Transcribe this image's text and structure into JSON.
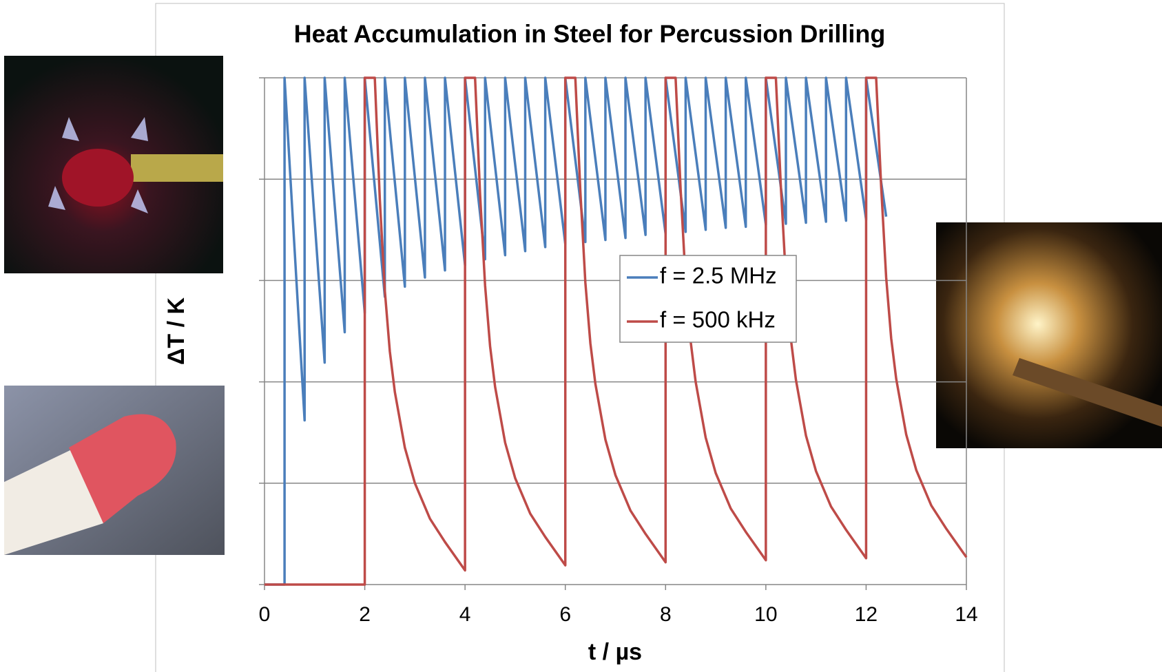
{
  "chart_data": {
    "type": "line",
    "title": "Heat Accumulation in Steel for Percussion Drilling",
    "xlabel": "t / µs",
    "ylabel": "ΔT / K",
    "xlim": [
      0,
      14
    ],
    "xticks": [
      0,
      2,
      4,
      6,
      8,
      10,
      12,
      14
    ],
    "ylim": [
      0,
      5
    ],
    "yticks": [
      0,
      1,
      2,
      3,
      4,
      5
    ],
    "grid": true,
    "series": [
      {
        "name": "f = 2.5 MHz",
        "color": "#4a7ebb",
        "x": [
          0,
          0.4,
          0.4,
          0.8,
          0.8,
          1.2,
          1.2,
          1.6,
          1.6,
          2,
          2,
          2.4,
          2.4,
          2.8,
          2.8,
          3.2,
          3.2,
          3.6,
          3.6,
          4,
          4,
          4.4,
          4.4,
          4.8,
          4.8,
          5.2,
          5.2,
          5.6,
          5.6,
          6,
          6,
          6.4,
          6.4,
          6.8,
          6.8,
          7.2,
          7.2,
          7.6,
          7.6,
          8,
          8,
          8.4,
          8.4,
          8.8,
          8.8,
          9.2,
          9.2,
          9.6,
          9.6,
          10,
          10,
          10.4,
          10.4,
          10.8,
          10.8,
          11.2,
          11.2,
          11.6,
          11.6,
          12,
          12,
          12.4
        ],
        "values": [
          0,
          0,
          5,
          1.62,
          5,
          2.19,
          5,
          2.49,
          5,
          2.68,
          5,
          2.84,
          5,
          2.94,
          5,
          3.03,
          5,
          3.1,
          5,
          3.15,
          5,
          3.21,
          5,
          3.25,
          5,
          3.29,
          5,
          3.33,
          5,
          3.36,
          5,
          3.38,
          5,
          3.4,
          5,
          3.42,
          5,
          3.45,
          5,
          3.46,
          5,
          3.48,
          5,
          3.5,
          5,
          3.52,
          5,
          3.53,
          5,
          3.55,
          5,
          3.56,
          5,
          3.57,
          5,
          3.58,
          5,
          3.59,
          5,
          3.6,
          5,
          3.63
        ]
      },
      {
        "name": "f = 500 kHz",
        "color": "#be4b48",
        "x": [
          0,
          2,
          2,
          2.2,
          2.3,
          2.4,
          2.5,
          2.6,
          2.8,
          3,
          3.3,
          3.6,
          4,
          4,
          4.2,
          4.3,
          4.4,
          4.5,
          4.6,
          4.8,
          5,
          5.3,
          5.6,
          6,
          6,
          6.2,
          6.3,
          6.4,
          6.5,
          6.6,
          6.8,
          7,
          7.3,
          7.6,
          8,
          8,
          8.2,
          8.3,
          8.4,
          8.5,
          8.6,
          8.8,
          9,
          9.3,
          9.6,
          10,
          10,
          10.2,
          10.3,
          10.4,
          10.5,
          10.6,
          10.8,
          11,
          11.3,
          11.6,
          12,
          12,
          12.2,
          12.3,
          12.4,
          12.5,
          12.6,
          12.8,
          13,
          13.3,
          13.6,
          14
        ],
        "values": [
          0,
          0,
          5,
          5,
          3.8,
          2.9,
          2.3,
          1.9,
          1.35,
          1,
          0.65,
          0.42,
          0.14,
          5,
          5,
          3.85,
          2.95,
          2.35,
          1.95,
          1.4,
          1.05,
          0.7,
          0.47,
          0.19,
          5,
          5,
          3.88,
          2.98,
          2.38,
          1.98,
          1.43,
          1.08,
          0.73,
          0.5,
          0.22,
          5,
          5,
          3.9,
          3,
          2.4,
          2,
          1.45,
          1.1,
          0.75,
          0.52,
          0.24,
          5,
          5,
          3.92,
          3.02,
          2.42,
          2.02,
          1.47,
          1.12,
          0.77,
          0.54,
          0.26,
          5,
          5,
          3.93,
          3.03,
          2.43,
          2.03,
          1.48,
          1.13,
          0.78,
          0.55,
          0.27
        ]
      }
    ]
  }
}
